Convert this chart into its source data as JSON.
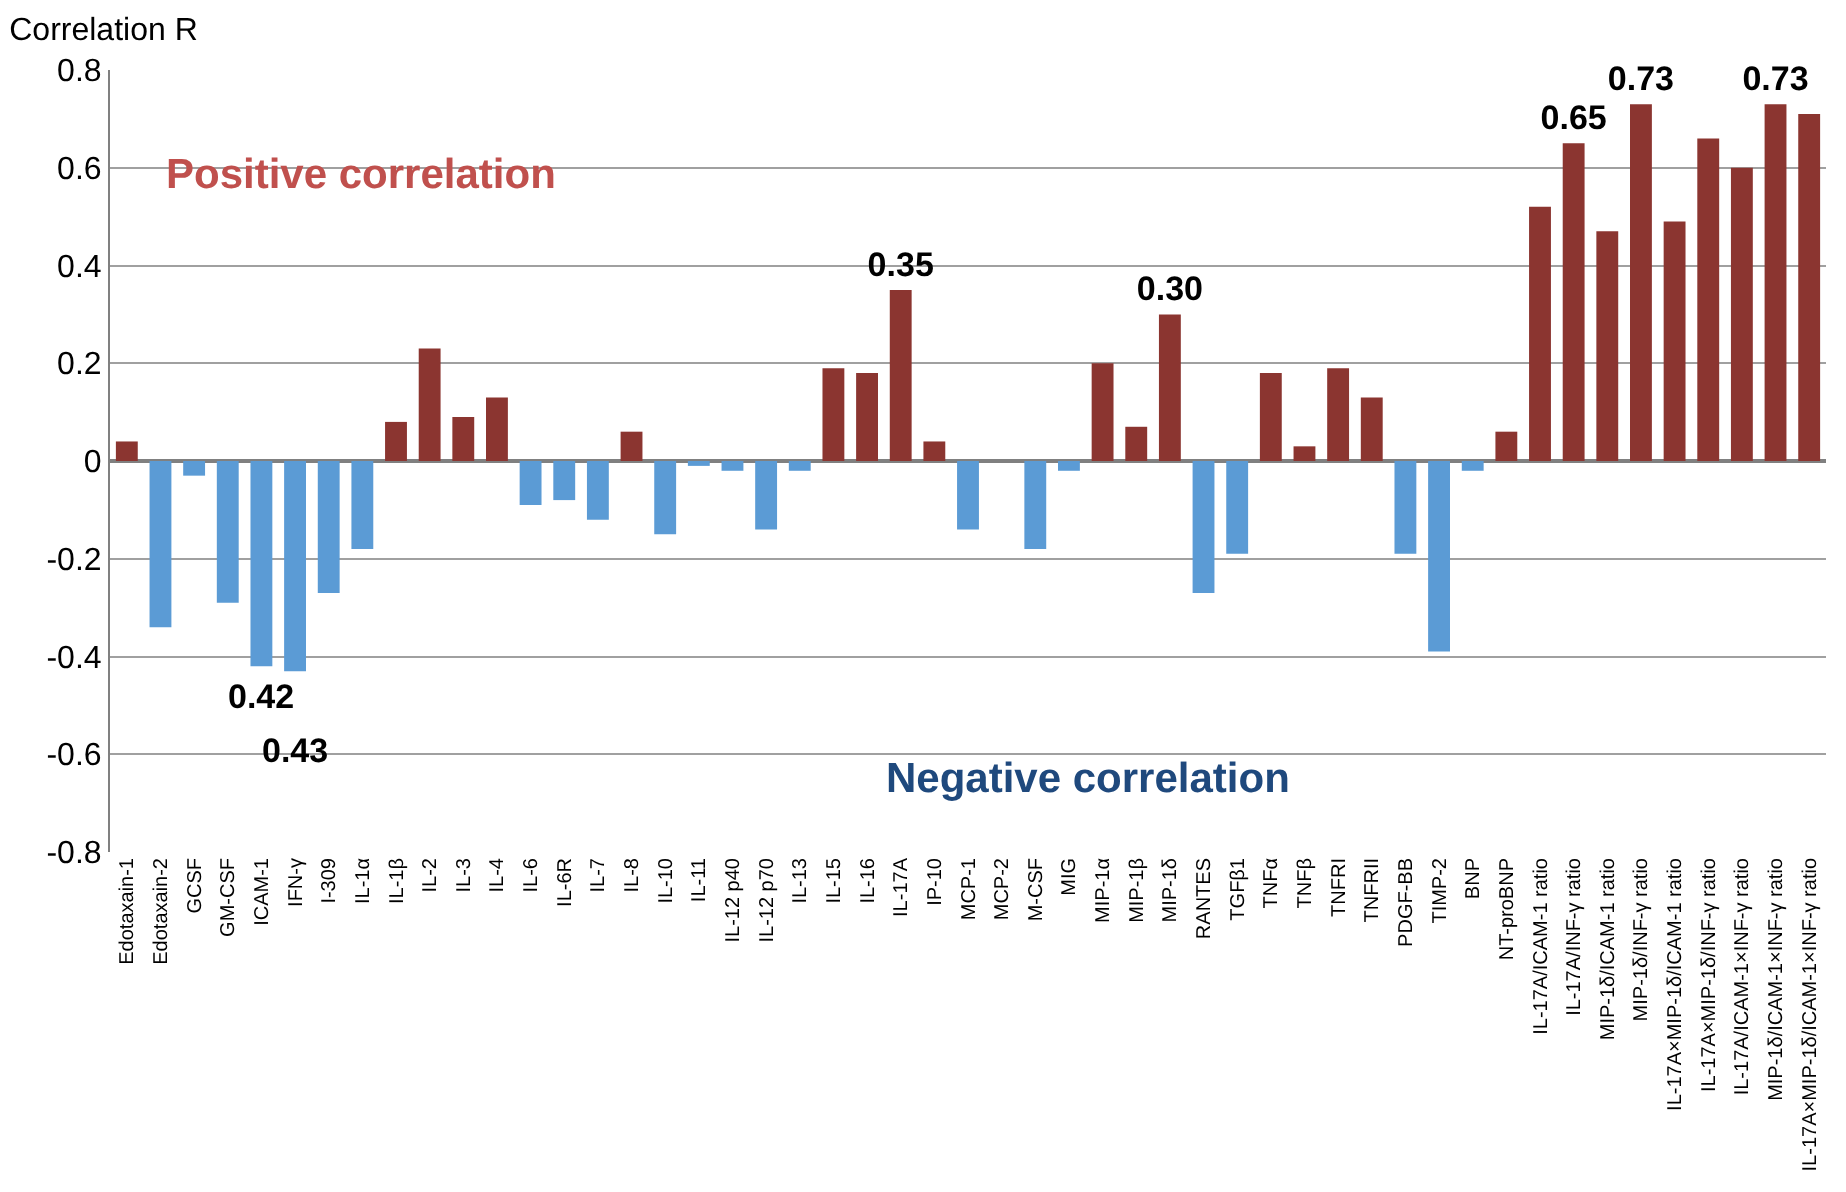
{
  "chart_data": {
    "type": "bar",
    "ylabel": "Correlation R",
    "categories": [
      "Edotaxain-1",
      "Edotaxain-2",
      "GCSF",
      "GM-CSF",
      "ICAM-1",
      "IFN-γ",
      "I-309",
      "IL-1α",
      "IL-1β",
      "IL-2",
      "IL-3",
      "IL-4",
      "IL-6",
      "IL-6R",
      "IL-7",
      "IL-8",
      "IL-10",
      "IL-11",
      "IL-12 p40",
      "IL-12 p70",
      "IL-13",
      "IL-15",
      "IL-16",
      "IL-17A",
      "IP-10",
      "MCP-1",
      "MCP-2",
      "M-CSF",
      "MIG",
      "MIP-1α",
      "MIP-1β",
      "MIP-1δ",
      "RANTES",
      "TGFβ1",
      "TNFα",
      "TNFβ",
      "TNFRI",
      "TNFRII",
      "PDGF-BB",
      "TIMP-2",
      "BNP",
      "NT-proBNP",
      "IL-17A/ICAM-1 ratio",
      "IL-17A/INF-γ ratio",
      "MIP-1δ/ICAM-1 ratio",
      "MIP-1δ/INF-γ ratio",
      "IL-17A×MIP-1δ/ICAM-1 ratio",
      "IL-17A×MIP-1δ/INF-γ ratio",
      "IL-17A/ICAM-1×INF-γ ratio",
      "MIP-1δ/ICAM-1×INF-γ ratio",
      "IL-17A×MIP-1δ/ICAM-1×INF-γ ratio"
    ],
    "values": [
      0.04,
      -0.34,
      -0.03,
      -0.29,
      -0.42,
      -0.43,
      -0.27,
      -0.18,
      0.08,
      0.23,
      0.09,
      0.13,
      -0.09,
      -0.08,
      -0.12,
      0.06,
      -0.15,
      -0.01,
      -0.02,
      -0.14,
      -0.02,
      0.19,
      0.18,
      0.35,
      0.04,
      -0.14,
      0,
      -0.18,
      -0.02,
      0.2,
      0.07,
      0.3,
      -0.27,
      -0.19,
      0.18,
      0.03,
      0.19,
      0.13,
      -0.19,
      -0.39,
      -0.02,
      0.06,
      0.52,
      0.65,
      0.47,
      0.73,
      0.49,
      0.66,
      0.6,
      0.73,
      0.71
    ],
    "value_labels": [
      null,
      null,
      null,
      null,
      null,
      null,
      null,
      null,
      null,
      null,
      null,
      null,
      null,
      null,
      null,
      null,
      null,
      null,
      null,
      null,
      null,
      null,
      null,
      "0.35",
      null,
      null,
      null,
      null,
      null,
      null,
      null,
      "0.30",
      null,
      null,
      null,
      null,
      null,
      null,
      null,
      null,
      null,
      null,
      null,
      "0.65",
      null,
      "0.73",
      null,
      null,
      null,
      "0.73",
      null
    ],
    "colors": [
      "#8b3530",
      "#5b9bd5",
      "#5b9bd5",
      "#5b9bd5",
      "#5b9bd5",
      "#5b9bd5",
      "#5b9bd5",
      "#5b9bd5",
      "#8b3530",
      "#8b3530",
      "#8b3530",
      "#8b3530",
      "#5b9bd5",
      "#5b9bd5",
      "#5b9bd5",
      "#8b3530",
      "#5b9bd5",
      "#5b9bd5",
      "#5b9bd5",
      "#5b9bd5",
      "#5b9bd5",
      "#8b3530",
      "#8b3530",
      "#8b3530",
      "#8b3530",
      "#5b9bd5",
      "#5b9bd5",
      "#5b9bd5",
      "#5b9bd5",
      "#8b3530",
      "#8b3530",
      "#8b3530",
      "#5b9bd5",
      "#5b9bd5",
      "#8b3530",
      "#8b3530",
      "#8b3530",
      "#8b3530",
      "#5b9bd5",
      "#5b9bd5",
      "#5b9bd5",
      "#8b3530",
      "#8b3530",
      "#8b3530",
      "#8b3530",
      "#8b3530",
      "#8b3530",
      "#8b3530",
      "#8b3530",
      "#8b3530",
      "#8b3530"
    ],
    "ylim": [
      -0.8,
      0.8
    ],
    "yticks": [
      -0.8,
      -0.6,
      -0.4,
      -0.2,
      0,
      0.2,
      0.4,
      0.6,
      0.8
    ],
    "grid": "y",
    "annotations": [
      "Positive correlation",
      "Negative correlation",
      {
        "text": "0.42",
        "x": "ICAM-1",
        "y": -0.42
      },
      {
        "text": "0.43",
        "x": "IFN-γ",
        "y": -0.43
      }
    ]
  }
}
